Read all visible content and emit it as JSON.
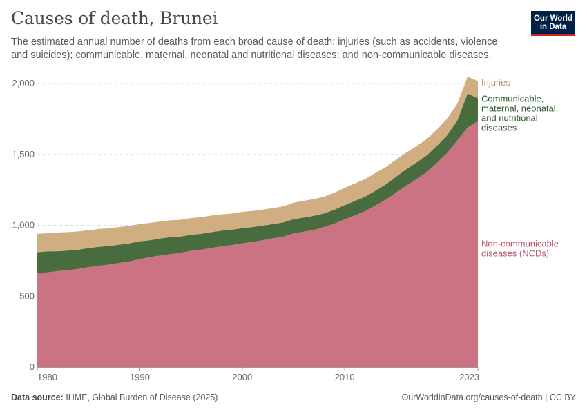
{
  "header": {
    "title": "Causes of death, Brunei",
    "subtitle": "The estimated annual number of deaths from each broad cause of death: injuries (such as accidents, violence and suicides); communicable, maternal, neonatal and nutritional diseases; and non-communicable diseases.",
    "logo_line1": "Our World",
    "logo_line2": "in Data"
  },
  "footer": {
    "source_label": "Data source:",
    "source_text": "IHME, Global Burden of Disease (2025)",
    "url_text": "OurWorldinData.org/causes-of-death | CC BY"
  },
  "colors": {
    "ncd": "#cc7383",
    "communicable": "#486c3e",
    "injuries": "#d1ae82",
    "communicable_label": "#2e5a2a",
    "injuries_label": "#b59064",
    "ncd_label": "#b8536a"
  },
  "chart_data": {
    "type": "area",
    "stacked": true,
    "title": "Causes of death, Brunei",
    "xlabel": "",
    "ylabel": "",
    "ylim": [
      0,
      2000
    ],
    "xlim": [
      1980,
      2023
    ],
    "x": [
      1980,
      1981,
      1982,
      1983,
      1984,
      1985,
      1986,
      1987,
      1988,
      1989,
      1990,
      1991,
      1992,
      1993,
      1994,
      1995,
      1996,
      1997,
      1998,
      1999,
      2000,
      2001,
      2002,
      2003,
      2004,
      2005,
      2006,
      2007,
      2008,
      2009,
      2010,
      2011,
      2012,
      2013,
      2014,
      2015,
      2016,
      2017,
      2018,
      2019,
      2020,
      2021,
      2022,
      2023
    ],
    "x_tick_labels": [
      "1980",
      "1990",
      "2000",
      "2010",
      "2023"
    ],
    "x_ticks": [
      1980,
      1990,
      2000,
      2010,
      2023
    ],
    "y_tick_labels": [
      "0",
      "500",
      "1,000",
      "1,500",
      "2,000"
    ],
    "y_ticks": [
      0,
      500,
      1000,
      1500,
      2000
    ],
    "series": [
      {
        "name": "Non-communicable diseases (NCDs)",
        "legend_lines": [
          "Non-communicable",
          "diseases (NCDs)"
        ],
        "values": [
          660,
          668,
          677,
          684,
          692,
          705,
          714,
          723,
          734,
          745,
          762,
          775,
          787,
          797,
          806,
          820,
          828,
          840,
          852,
          860,
          873,
          882,
          895,
          908,
          920,
          942,
          955,
          968,
          988,
          1012,
          1042,
          1070,
          1100,
          1140,
          1180,
          1230,
          1280,
          1325,
          1375,
          1440,
          1510,
          1600,
          1690,
          1735
        ]
      },
      {
        "name": "Communicable, maternal, neonatal, and nutritional diseases",
        "legend_lines": [
          "Communicable,",
          "maternal, neonatal,",
          "and nutritional",
          "diseases"
        ],
        "values": [
          150,
          148,
          140,
          138,
          135,
          135,
          134,
          131,
          130,
          128,
          125,
          120,
          120,
          119,
          115,
          113,
          112,
          112,
          110,
          109,
          107,
          105,
          103,
          101,
          100,
          101,
          100,
          99,
          96,
          98,
          100,
          102,
          102,
          104,
          108,
          112,
          115,
          117,
          118,
          120,
          125,
          140,
          240,
          160
        ]
      },
      {
        "name": "Injuries",
        "legend_lines": [
          "Injuries"
        ],
        "values": [
          130,
          128,
          132,
          130,
          130,
          125,
          126,
          125,
          124,
          123,
          122,
          122,
          120,
          119,
          118,
          118,
          117,
          117,
          115,
          114,
          115,
          114,
          113,
          112,
          113,
          116,
          118,
          118,
          118,
          120,
          122,
          123,
          124,
          125,
          122,
          120,
          118,
          116,
          115,
          115,
          117,
          118,
          120,
          120
        ]
      }
    ]
  }
}
